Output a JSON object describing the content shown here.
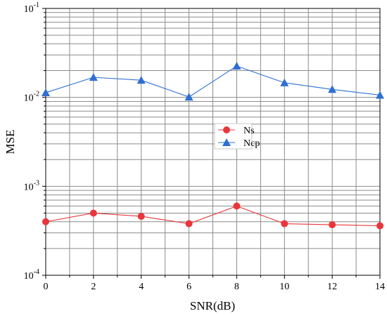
{
  "chart_data": {
    "type": "line",
    "title": "",
    "xlabel": "SNR(dB)",
    "ylabel": "MSE",
    "x": [
      0,
      2,
      4,
      6,
      8,
      10,
      12,
      14
    ],
    "xlim": [
      0,
      14
    ],
    "ylim": [
      0.0001,
      0.1
    ],
    "yscale": "log",
    "x_ticks": [
      "0",
      "2",
      "4",
      "6",
      "8",
      "10",
      "12",
      "14"
    ],
    "y_tick_exponents": [
      "-4",
      "-3",
      "-2",
      "-1"
    ],
    "y_tick_base": "10",
    "grid": true,
    "legend_position": "center",
    "series": [
      {
        "name": "Ns",
        "marker": "circle",
        "color": "#e8373b",
        "values": [
          0.0004,
          0.0005,
          0.00046,
          0.00038,
          0.0006,
          0.00038,
          0.00037,
          0.00036
        ]
      },
      {
        "name": "Ncp",
        "marker": "triangle",
        "color": "#2f6fd1",
        "values": [
          0.0113,
          0.0168,
          0.0156,
          0.0101,
          0.0225,
          0.0146,
          0.0123,
          0.0106
        ]
      }
    ]
  }
}
